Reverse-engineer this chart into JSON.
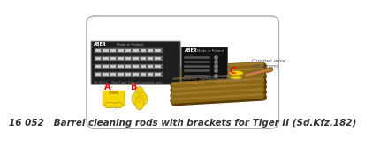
{
  "title": "16 052   Barrel cleaning rods with brackets for Tiger II (Sd.Kfz.182)",
  "title_fontsize": 7.5,
  "bg_color": "#ffffff",
  "border_color": "#aaaaaa",
  "label_color": "#ff0000",
  "label_fontsize": 7,
  "wood_rods_label": "Wood\nrods",
  "copper_wire_label": "Copper wire\nØ0.4 mm",
  "annotation_color": "#555555",
  "annotation_fontsize": 4.5,
  "etch_plate_color": "#1e1e1e",
  "wood_rod_color_main": "#8B6914",
  "wood_rod_color_shadow": "#5c3d0a",
  "yellow_part_color": "#f5d800",
  "yellow_shadow": "#c8a800",
  "copper_color": "#b87333",
  "copper_highlight": "#d4944a"
}
